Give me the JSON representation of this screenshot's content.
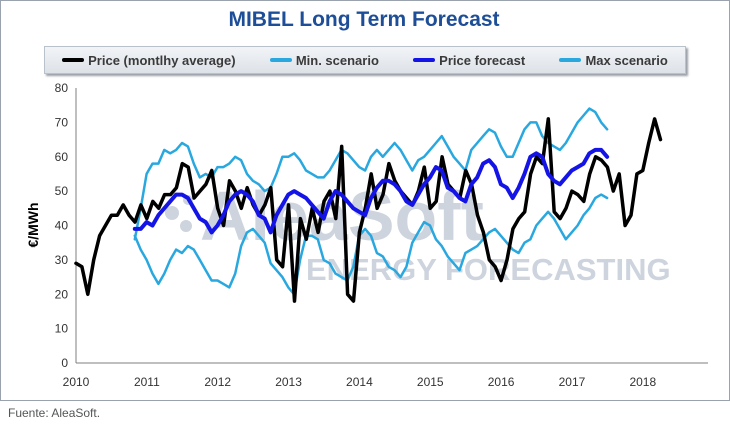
{
  "title": "MIBEL Long Term Forecast",
  "source": "Fuente: AleaSoft.",
  "watermark": {
    "brand": "AleaSoft",
    "tagline": "ENERGY FORECASTING"
  },
  "chart_data": {
    "type": "line",
    "title": "MIBEL Long Term Forecast",
    "ylabel": "€/MWh",
    "ylim": [
      0,
      80
    ],
    "yticks": [
      "0",
      "10",
      "20",
      "30",
      "40",
      "50",
      "60",
      "70",
      "80"
    ],
    "xlim": [
      2010,
      2018.92
    ],
    "xticks": [
      "2010",
      "2011",
      "2012",
      "2013",
      "2014",
      "2015",
      "2016",
      "2017",
      "2018"
    ],
    "grid": false,
    "legend": "top",
    "series": [
      {
        "name": "Price (montlhy average)",
        "color": "#000000",
        "x_start": 2010.0,
        "x_step": 0.08333,
        "values": [
          29,
          28,
          20,
          30,
          37,
          40,
          43,
          43,
          46,
          43,
          41,
          46,
          42,
          47,
          45,
          49,
          49,
          51,
          58,
          57,
          48,
          50,
          52,
          56,
          45,
          40,
          53,
          50,
          45,
          51,
          46,
          43,
          46,
          51,
          30,
          28,
          46,
          18,
          42,
          36,
          45,
          38,
          47,
          50,
          42,
          63,
          20,
          18,
          38,
          45,
          55,
          45,
          49,
          58,
          53,
          50,
          48,
          46,
          50,
          57,
          45,
          47,
          60,
          52,
          50,
          48,
          56,
          52,
          43,
          38,
          30,
          28,
          24,
          30,
          39,
          42,
          44,
          55,
          60,
          58,
          71,
          44,
          42,
          45,
          50,
          49,
          47,
          55,
          60,
          59,
          57,
          50,
          55,
          40,
          43,
          55,
          56,
          64,
          71,
          65
        ]
      },
      {
        "name": "Min. scenario",
        "color": "#29a8e0",
        "x_start": 2010.83,
        "x_step": 0.08333,
        "values": [
          37,
          33,
          30,
          26,
          23,
          26,
          30,
          33,
          32,
          34,
          33,
          30,
          27,
          24,
          24,
          23,
          22,
          26,
          34,
          38,
          39,
          37,
          35,
          29,
          27,
          25,
          22,
          20,
          30,
          37,
          37,
          36,
          30,
          29,
          26,
          25,
          24,
          28,
          37,
          39,
          37,
          32,
          31,
          28,
          27,
          25,
          28,
          35,
          38,
          41,
          40,
          36,
          34,
          31,
          29,
          27,
          32,
          33,
          34,
          36,
          38,
          39,
          37,
          35,
          33,
          32,
          35,
          36,
          40,
          42,
          44,
          42,
          39,
          36,
          38,
          40,
          43,
          45,
          48,
          49,
          48
        ]
      },
      {
        "name": "Price forecast",
        "color": "#1414e6",
        "x_start": 2010.83,
        "x_step": 0.08333,
        "values": [
          39,
          39,
          41,
          40,
          43,
          45,
          47,
          49,
          49,
          48,
          45,
          42,
          41,
          38,
          40,
          43,
          47,
          49,
          50,
          49,
          47,
          43,
          42,
          38,
          43,
          46,
          49,
          50,
          49,
          48,
          46,
          44,
          42,
          47,
          50,
          49,
          47,
          45,
          44,
          43,
          48,
          51,
          53,
          53,
          52,
          50,
          47,
          46,
          49,
          52,
          54,
          57,
          56,
          51,
          50,
          48,
          47,
          52,
          54,
          58,
          59,
          57,
          52,
          51,
          48,
          51,
          55,
          60,
          61,
          60,
          55,
          53,
          52,
          54,
          56,
          57,
          58,
          61,
          62,
          62,
          60
        ]
      },
      {
        "name": "Max scenario",
        "color": "#29a8e0",
        "x_start": 2010.83,
        "x_step": 0.08333,
        "values": [
          36,
          45,
          55,
          58,
          58,
          62,
          61,
          62,
          64,
          63,
          58,
          54,
          55,
          54,
          57,
          57,
          58,
          60,
          59,
          55,
          53,
          52,
          50,
          51,
          55,
          60,
          60,
          61,
          59,
          56,
          55,
          54,
          54,
          56,
          59,
          62,
          61,
          59,
          57,
          56,
          60,
          62,
          60,
          62,
          64,
          62,
          59,
          56,
          59,
          60,
          62,
          64,
          66,
          63,
          60,
          58,
          56,
          62,
          64,
          66,
          68,
          67,
          63,
          60,
          60,
          64,
          68,
          70,
          70,
          66,
          64,
          63,
          62,
          64,
          67,
          70,
          72,
          74,
          73,
          70,
          68
        ]
      }
    ]
  }
}
